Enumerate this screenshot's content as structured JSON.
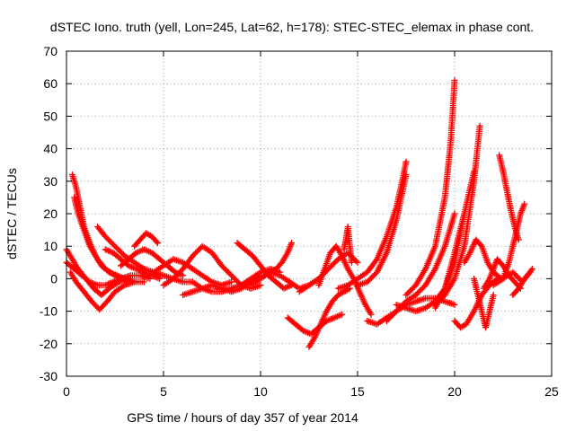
{
  "chart_data": {
    "type": "scatter",
    "title": "dSTEC Iono. truth (yell, Lon=245, Lat=62, h=178): STEC-STEC_elemax in phase cont.",
    "xlabel": "GPS time / hours of day 357 of year 2014",
    "ylabel": "dSTEC  / TECUs",
    "xlim": [
      0,
      25
    ],
    "ylim": [
      -30,
      70
    ],
    "xticks": [
      "0",
      "5",
      "10",
      "15",
      "20",
      "25"
    ],
    "yticks": [
      "-30",
      "-20",
      "-10",
      "0",
      "10",
      "20",
      "30",
      "40",
      "50",
      "60",
      "70"
    ],
    "grid": true,
    "marker": "plus",
    "color": "#ff0000",
    "series": [
      {
        "x": [
          0.0,
          0.3,
          0.6,
          1.0,
          1.4,
          1.8,
          2.2,
          2.7,
          3.2
        ],
        "y": [
          9,
          6,
          3,
          0,
          -3,
          -5,
          -3,
          -1,
          0
        ]
      },
      {
        "x": [
          0.0,
          0.4,
          0.8,
          1.2,
          1.6,
          2.0,
          2.4,
          2.8,
          3.3,
          3.8,
          4.3
        ],
        "y": [
          5,
          3,
          1,
          -1,
          -2,
          -2,
          -1,
          0,
          1,
          1,
          0
        ]
      },
      {
        "x": [
          0.2,
          0.5,
          0.9,
          1.3,
          1.7,
          2.1,
          2.5,
          3.0,
          3.5
        ],
        "y": [
          2,
          -1,
          -4,
          -7,
          -9.5,
          -7,
          -4,
          -2,
          -1
        ]
      },
      {
        "x": [
          0.3,
          0.5,
          0.7,
          0.9,
          1.2,
          1.5,
          1.8,
          2.2,
          2.6,
          3.0,
          3.5,
          4.0
        ],
        "y": [
          32,
          28,
          22,
          16,
          11,
          7,
          4,
          2,
          1,
          0,
          -1,
          -1
        ]
      },
      {
        "x": [
          0.4,
          0.6,
          0.9,
          1.2,
          1.6,
          2.0,
          2.5,
          3.0,
          3.5
        ],
        "y": [
          25,
          20,
          15,
          10,
          6,
          3,
          1,
          0,
          -1
        ]
      },
      {
        "x": [
          1.6,
          2.0,
          2.5,
          3.0,
          3.5,
          4.0,
          4.5,
          5.0,
          5.5,
          6.0,
          6.5
        ],
        "y": [
          16,
          13,
          10,
          7,
          5,
          3,
          2,
          1,
          0,
          -1,
          -1
        ]
      },
      {
        "x": [
          2.0,
          2.4,
          2.8,
          3.2,
          3.6,
          4.0,
          4.4,
          4.8
        ],
        "y": [
          9,
          8,
          6,
          4,
          3,
          2,
          1,
          0
        ]
      },
      {
        "x": [
          2.8,
          3.2,
          3.6,
          4.0,
          4.4,
          4.8,
          5.2,
          5.6,
          6.0
        ],
        "y": [
          4,
          6,
          8,
          9,
          8,
          6,
          4,
          2,
          1
        ]
      },
      {
        "x": [
          3.5,
          3.8,
          4.1,
          4.4,
          4.7
        ],
        "y": [
          10,
          12,
          14,
          13,
          11
        ]
      },
      {
        "x": [
          4.5,
          5.0,
          5.5,
          6.0,
          6.5,
          7.0,
          7.5,
          8.0,
          8.5
        ],
        "y": [
          2,
          4,
          6,
          5,
          3,
          1,
          -1,
          -2,
          -1
        ]
      },
      {
        "x": [
          5.0,
          5.5,
          6.0,
          6.5,
          7.0,
          7.5,
          8.0,
          8.5,
          9.0,
          9.5,
          10.0
        ],
        "y": [
          -2,
          0,
          3,
          7,
          10,
          8,
          4,
          1,
          -2,
          -3,
          -2
        ]
      },
      {
        "x": [
          6.0,
          6.5,
          7.0,
          7.5,
          8.0,
          8.5,
          9.0,
          9.5,
          10.0
        ],
        "y": [
          -5,
          -4,
          -3,
          -2,
          -3,
          -4,
          -3,
          -1,
          1
        ]
      },
      {
        "x": [
          6.5,
          7.0,
          7.5,
          8.0,
          8.5,
          9.0,
          9.5,
          10.0,
          10.5,
          11.0
        ],
        "y": [
          -1,
          -3,
          -4,
          -4,
          -3,
          -2,
          0,
          2,
          3,
          2
        ]
      },
      {
        "x": [
          8.8,
          9.2,
          9.6,
          10.0,
          10.4,
          10.8,
          11.2,
          11.6
        ],
        "y": [
          11,
          9,
          7,
          4,
          1,
          -1,
          -3,
          -2
        ]
      },
      {
        "x": [
          9.5,
          10.0,
          10.5,
          11.0,
          11.5,
          12.0,
          12.5,
          13.0
        ],
        "y": [
          -2,
          0,
          2,
          1,
          -1,
          -3,
          -2,
          0
        ]
      },
      {
        "x": [
          10.5,
          10.8,
          11.1,
          11.4,
          11.6
        ],
        "y": [
          2,
          3,
          5,
          8,
          11
        ]
      },
      {
        "x": [
          11.4,
          11.8,
          12.2,
          12.6,
          13.0,
          13.4,
          13.8,
          14.2
        ],
        "y": [
          -12,
          -14,
          -16,
          -17,
          -15,
          -13,
          -12,
          -11
        ]
      },
      {
        "x": [
          12.5,
          12.8,
          13.1,
          13.4,
          13.7,
          14.0,
          14.3,
          14.6
        ],
        "y": [
          -21,
          -18,
          -14,
          -10,
          -7,
          -5,
          -4,
          -3
        ]
      },
      {
        "x": [
          12.0,
          12.5,
          13.0,
          13.5,
          14.0,
          14.5,
          15.0
        ],
        "y": [
          -4,
          -2,
          0,
          3,
          6,
          8,
          5
        ]
      },
      {
        "x": [
          13.0,
          13.3,
          13.6,
          13.9,
          14.2,
          14.5,
          14.8,
          15.1,
          15.4,
          15.7
        ],
        "y": [
          -2,
          3,
          8,
          10,
          7,
          3,
          0,
          -4,
          -8,
          -11
        ]
      },
      {
        "x": [
          14.3,
          14.4,
          14.5,
          14.6,
          14.7
        ],
        "y": [
          9,
          12,
          16,
          10,
          5
        ]
      },
      {
        "x": [
          14.0,
          14.5,
          15.0,
          15.5,
          16.0,
          16.5,
          17.0,
          17.3,
          17.5
        ],
        "y": [
          -3,
          -2,
          0,
          2,
          6,
          13,
          22,
          30,
          36
        ]
      },
      {
        "x": [
          15.0,
          15.5,
          16.0,
          16.5,
          17.0,
          17.5
        ],
        "y": [
          -2,
          -1,
          2,
          8,
          18,
          32
        ]
      },
      {
        "x": [
          15.5,
          16.0,
          16.5,
          17.0,
          17.5,
          18.0,
          18.5,
          19.0,
          19.5,
          20.0
        ],
        "y": [
          -13,
          -14,
          -12,
          -10,
          -8,
          -7,
          -6,
          -6,
          -7,
          -8
        ]
      },
      {
        "x": [
          16.5,
          17.0,
          17.5,
          18.0,
          18.5,
          19.0,
          19.5,
          20.0
        ],
        "y": [
          -13,
          -10,
          -7,
          -5,
          -2,
          3,
          10,
          20
        ]
      },
      {
        "x": [
          17.5,
          18.0,
          18.5,
          19.0,
          19.5,
          19.8,
          20.0
        ],
        "y": [
          -5,
          -2,
          3,
          10,
          25,
          42,
          61
        ]
      },
      {
        "x": [
          17.0,
          17.5,
          18.0,
          18.5,
          19.0,
          19.5,
          20.0,
          20.5
        ],
        "y": [
          -8,
          -9,
          -10,
          -9,
          -7,
          -3,
          5,
          20
        ]
      },
      {
        "x": [
          19.0,
          19.5,
          20.0,
          20.5,
          21.0,
          21.3
        ],
        "y": [
          -8,
          -5,
          0,
          10,
          30,
          47
        ]
      },
      {
        "x": [
          19.0,
          19.5,
          20.0,
          20.5,
          21.0
        ],
        "y": [
          -9,
          -3,
          8,
          20,
          33
        ]
      },
      {
        "x": [
          20.0,
          20.3,
          20.6,
          21.0,
          21.4,
          21.8,
          22.2
        ],
        "y": [
          -13,
          -15,
          -14,
          -10,
          -5,
          -2,
          0
        ]
      },
      {
        "x": [
          20.5,
          20.8,
          21.1,
          21.4,
          21.7,
          22.0,
          22.4
        ],
        "y": [
          5,
          8,
          12,
          10,
          5,
          2,
          0
        ]
      },
      {
        "x": [
          21.0,
          21.2,
          21.4,
          21.6,
          21.8,
          22.0
        ],
        "y": [
          0,
          -5,
          -10,
          -15,
          -10,
          -5
        ]
      },
      {
        "x": [
          21.5,
          21.8,
          22.0,
          22.2,
          22.5,
          22.8,
          23.1,
          23.4
        ],
        "y": [
          -3,
          0,
          3,
          6,
          4,
          1,
          -1,
          -3
        ]
      },
      {
        "x": [
          22.3,
          22.5,
          22.7,
          22.9,
          23.1,
          23.3
        ],
        "y": [
          38,
          33,
          27,
          21,
          16,
          12
        ]
      },
      {
        "x": [
          22.5,
          22.8,
          23.0,
          23.2,
          23.4,
          23.6
        ],
        "y": [
          0,
          5,
          10,
          15,
          20,
          23
        ]
      },
      {
        "x": [
          22.0,
          22.5,
          23.0,
          23.5,
          24.0
        ],
        "y": [
          -2,
          0,
          2,
          -1,
          3
        ]
      },
      {
        "x": [
          23.0,
          23.3,
          23.6,
          23.9
        ],
        "y": [
          -5,
          -3,
          0,
          2
        ]
      }
    ]
  }
}
